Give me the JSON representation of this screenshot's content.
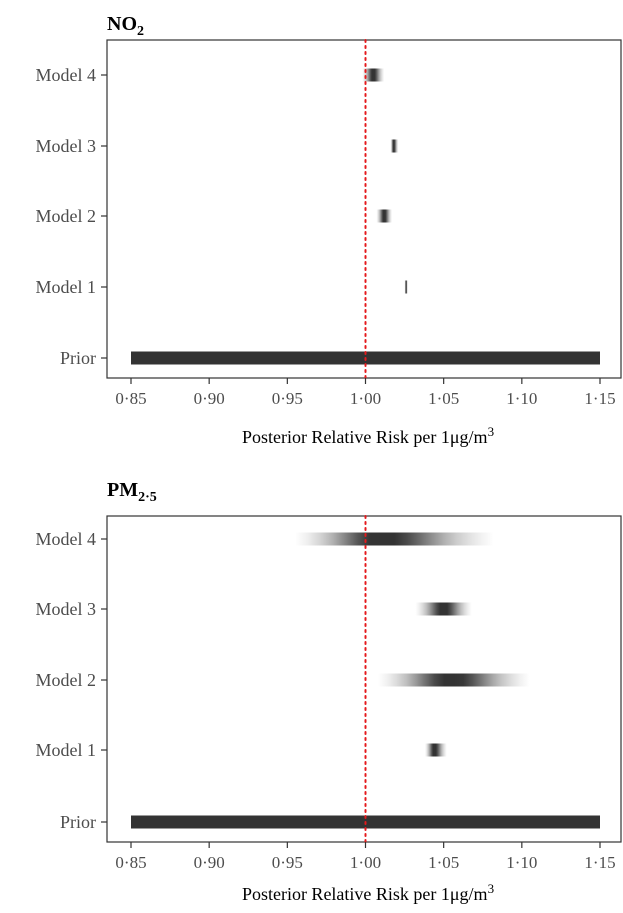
{
  "chart_data": [
    {
      "type": "heatmap",
      "title": "NO",
      "title_sub": "2",
      "xlabel": "Posterior Relative Risk per 1μg/m",
      "xlabel_sup": "3",
      "xlim": [
        0.85,
        1.15
      ],
      "x_ticks": [
        "0·85",
        "0·90",
        "0·95",
        "1·00",
        "1·05",
        "1·10",
        "1·15"
      ],
      "x_tick_values": [
        0.85,
        0.9,
        0.95,
        1.0,
        1.05,
        1.1,
        1.15
      ],
      "categories": [
        "Model 4",
        "Model 3",
        "Model 2",
        "Model 1",
        "Prior"
      ],
      "reference_line": 1.0,
      "reference_color": "#e41a1c",
      "strip_color": "#333333",
      "grid": false,
      "intervals": [
        {
          "category": "Model 4",
          "low": 0.998,
          "mode": 1.005,
          "high": 1.012
        },
        {
          "category": "Model 3",
          "low": 1.016,
          "mode": 1.018,
          "high": 1.021
        },
        {
          "category": "Model 2",
          "low": 1.007,
          "mode": 1.012,
          "high": 1.017
        },
        {
          "category": "Model 1",
          "low": 1.025,
          "mode": 1.026,
          "high": 1.027
        },
        {
          "category": "Prior",
          "low": 0.85,
          "mode": 1.0,
          "high": 1.15,
          "uniform": true
        }
      ]
    },
    {
      "type": "heatmap",
      "title": "PM",
      "title_sub": "2·5",
      "xlabel": "Posterior Relative Risk per 1μg/m",
      "xlabel_sup": "3",
      "xlim": [
        0.85,
        1.15
      ],
      "x_ticks": [
        "0·85",
        "0·90",
        "0·95",
        "1·00",
        "1·05",
        "1·10",
        "1·15"
      ],
      "x_tick_values": [
        0.85,
        0.9,
        0.95,
        1.0,
        1.05,
        1.1,
        1.15
      ],
      "categories": [
        "Model 4",
        "Model 3",
        "Model 2",
        "Model 1",
        "Prior"
      ],
      "reference_line": 1.0,
      "reference_color": "#e41a1c",
      "strip_color": "#333333",
      "grid": false,
      "intervals": [
        {
          "category": "Model 4",
          "low": 0.955,
          "mode": 1.01,
          "high": 1.082
        },
        {
          "category": "Model 3",
          "low": 1.032,
          "mode": 1.05,
          "high": 1.068
        },
        {
          "category": "Model 2",
          "low": 1.008,
          "mode": 1.055,
          "high": 1.105
        },
        {
          "category": "Model 1",
          "low": 1.038,
          "mode": 1.044,
          "high": 1.052
        },
        {
          "category": "Prior",
          "low": 0.85,
          "mode": 1.0,
          "high": 1.15,
          "uniform": true
        }
      ]
    }
  ]
}
